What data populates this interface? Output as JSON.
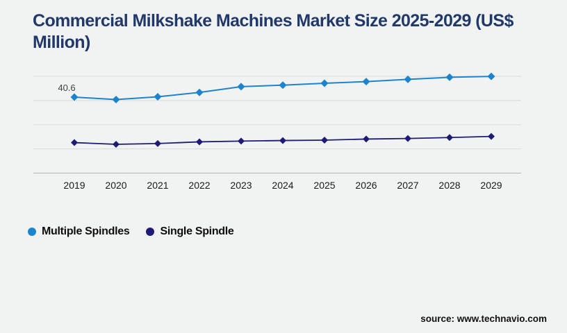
{
  "page": {
    "background": "#f1f2f2",
    "title": "Commercial Milkshake Machines Market Size 2025-2029 (US$ Million)",
    "title_color": "#21386b",
    "source": "source: www.technavio.com"
  },
  "legend": {
    "items": [
      {
        "label": "Multiple Spindles",
        "color": "#1c84cd"
      },
      {
        "label": "Single Spindle",
        "color": "#1e1b75"
      }
    ]
  },
  "chart_data": {
    "type": "line",
    "title": "Commercial Milkshake Machines Market Size 2025-2029 (US$ Million)",
    "categories": [
      "2019",
      "2020",
      "2021",
      "2022",
      "2023",
      "2024",
      "2025",
      "2026",
      "2027",
      "2028",
      "2029"
    ],
    "series": [
      {
        "name": "Multiple Spindles",
        "color": "#1c84cd",
        "marker": "diamond",
        "values": [
          40.6,
          39.3,
          40.8,
          43.1,
          46.2,
          47.0,
          48.0,
          48.9,
          50.1,
          51.2,
          51.7
        ]
      },
      {
        "name": "Single Spindle",
        "color": "#1e1b75",
        "marker": "diamond",
        "values": [
          16.3,
          15.4,
          15.8,
          16.7,
          17.1,
          17.4,
          17.6,
          18.2,
          18.5,
          19.0,
          19.6
        ]
      }
    ],
    "annotations": [
      {
        "series": "Multiple Spindles",
        "category": "2019",
        "text": "40.6"
      }
    ],
    "xlabel": "",
    "ylabel": "",
    "ylim": [
      0,
      58.4
    ],
    "grid": "horizontal",
    "y_axis_labels_visible": false,
    "legend_position": "bottom-left"
  }
}
